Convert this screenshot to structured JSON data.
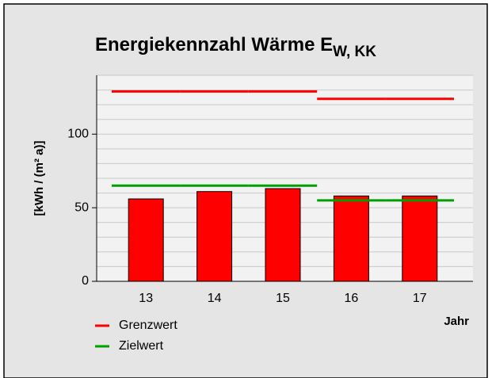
{
  "chart_data": {
    "type": "bar",
    "title": "Energiekennzahl Wärme E",
    "title_subscript": "W, KK",
    "y_label": "[kWh / (m² a)]",
    "x_label": "Jahr",
    "categories": [
      "13",
      "14",
      "15",
      "16",
      "17"
    ],
    "values": [
      56,
      61,
      63,
      58,
      58
    ],
    "color": "#ff0000",
    "lines": [
      {
        "name": "Grenzwert",
        "color": "#ff0000",
        "values": [
          129,
          129,
          129,
          124,
          124
        ]
      },
      {
        "name": "Zielwert",
        "color": "#00a000",
        "values": [
          65,
          65,
          65,
          55,
          55
        ]
      }
    ],
    "ylim": [
      0,
      140
    ],
    "yticks": [
      0,
      50,
      100
    ],
    "ygrid": [
      10,
      20,
      30,
      40,
      50,
      60,
      70,
      80,
      90,
      100,
      110,
      120,
      130,
      140
    ],
    "grid": true
  }
}
